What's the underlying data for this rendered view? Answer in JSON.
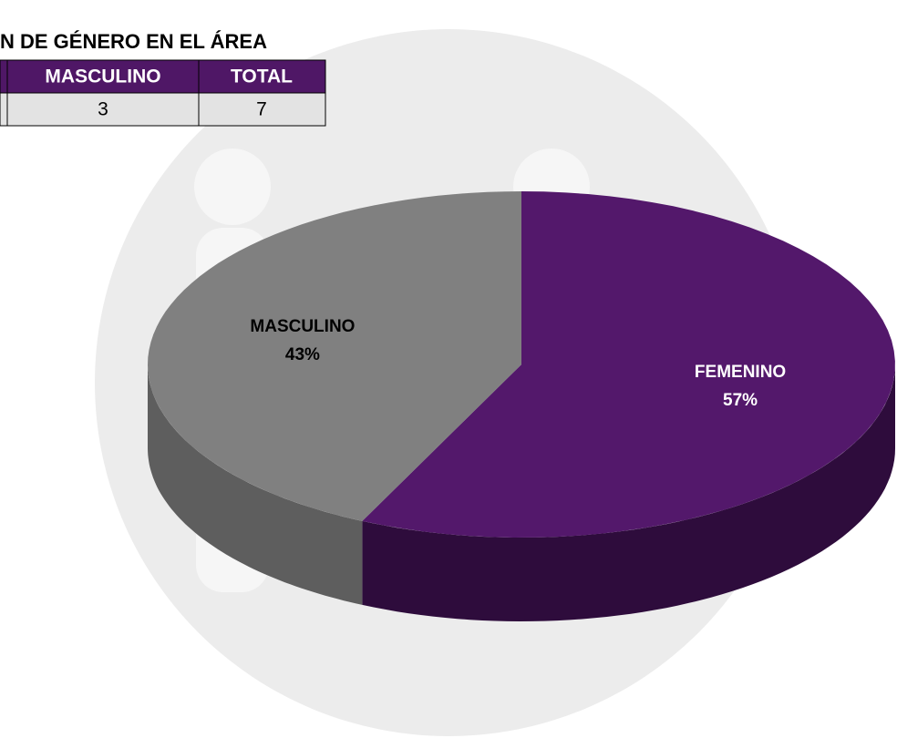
{
  "title": "N DE GÉNERO EN EL ÁREA",
  "table": {
    "headers": [
      "MASCULINO",
      "TOTAL"
    ],
    "rows": [
      [
        3,
        7
      ]
    ]
  },
  "chart_data": {
    "type": "pie3d",
    "categories": [
      "FEMENINO",
      "MASCULINO"
    ],
    "values": [
      57,
      43
    ],
    "value_labels": [
      "57%",
      "43%"
    ],
    "colors": [
      "#53186b",
      "#808080"
    ],
    "side_colors": [
      "#2e0c3c",
      "#5e5e5e"
    ]
  }
}
